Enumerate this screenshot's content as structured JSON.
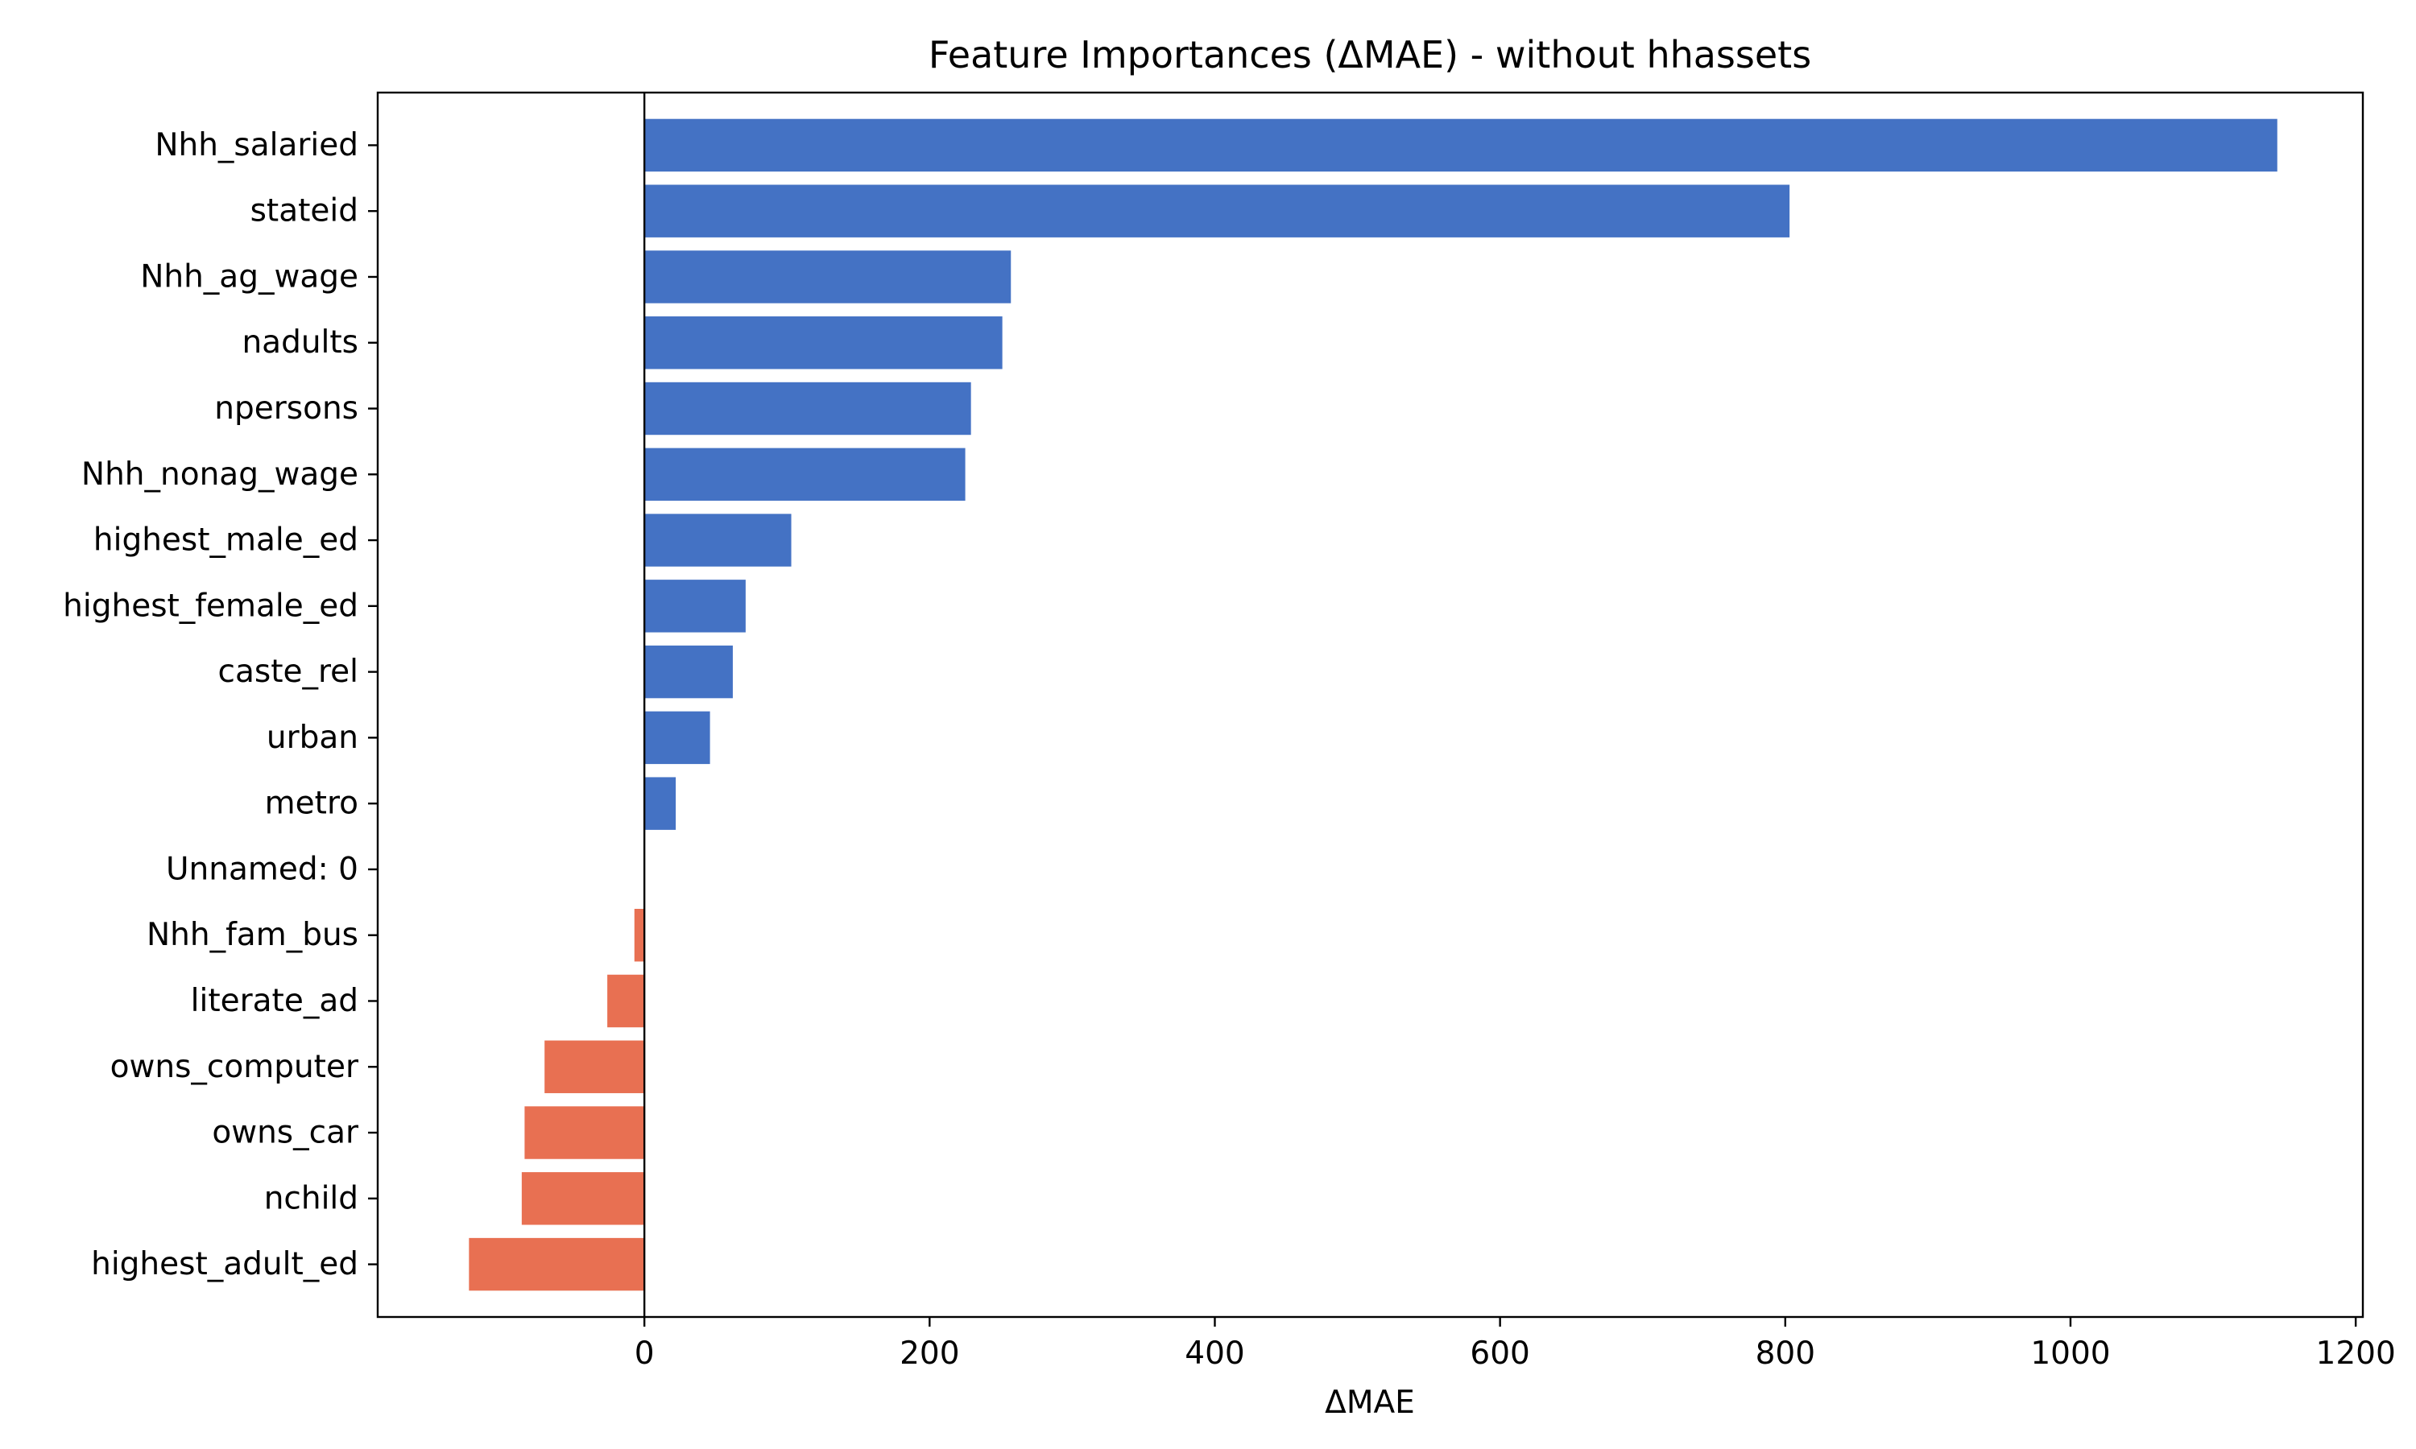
{
  "chart_data": {
    "type": "bar",
    "orientation": "horizontal",
    "title": "Feature Importances (ΔMAE) - without hhassets",
    "xlabel": "ΔMAE",
    "ylabel": "",
    "xlim": [
      -187,
      1205
    ],
    "xticks": [
      0,
      200,
      400,
      600,
      800,
      1000,
      1200
    ],
    "grid": false,
    "legend": "none",
    "positive_color": "#4472C4",
    "negative_color": "#E87052",
    "categories": [
      "Nhh_salaried",
      "stateid",
      "Nhh_ag_wage",
      "nadults",
      "npersons",
      "Nhh_nonag_wage",
      "highest_male_ed",
      "highest_female_ed",
      "caste_rel",
      "urban",
      "metro",
      "Unnamed: 0",
      "Nhh_fam_bus",
      "literate_ad",
      "owns_computer",
      "owns_car",
      "nchild",
      "highest_adult_ed"
    ],
    "values": [
      1145,
      803,
      257,
      251,
      229,
      225,
      103,
      71,
      62,
      46,
      22,
      0,
      -7,
      -26,
      -70,
      -84,
      -86,
      -123
    ]
  }
}
